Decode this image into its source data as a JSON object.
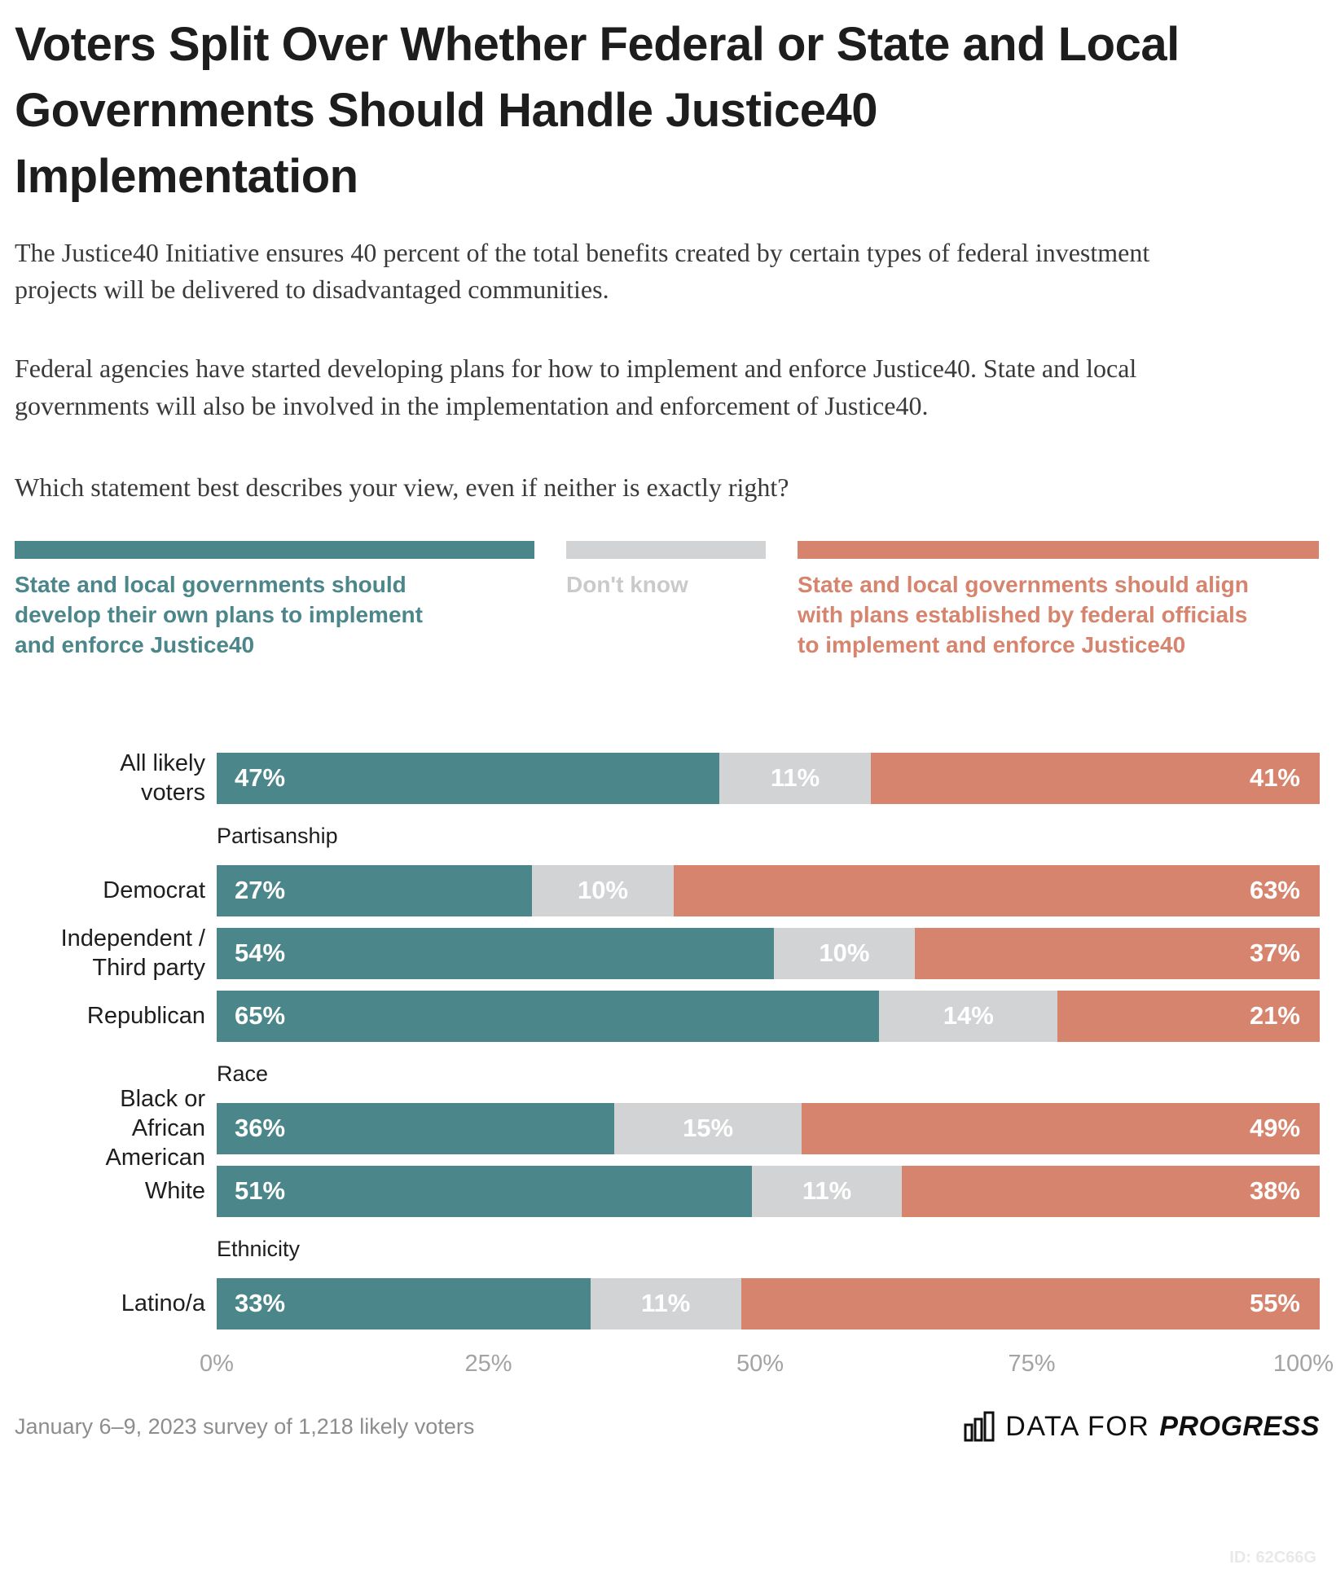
{
  "title": "Voters Split Over Whether Federal or State and Local Governments Should Handle Justice40 Implementation",
  "intro_paragraphs": [
    "The Justice40 Initiative ensures 40 percent of the total benefits created by certain types of federal investment projects will be delivered to disadvantaged communities.",
    "Federal agencies have started developing plans for how to implement and enforce Justice40. State and local governments will also be involved in the implementation and enforcement of Justice40."
  ],
  "question": "Which statement best describes your view, even if neither is exactly right?",
  "chart_data": {
    "type": "bar",
    "orientation": "horizontal",
    "stacked": true,
    "normalized_to_full_width": true,
    "unit": "%",
    "xlim": [
      0,
      100
    ],
    "x_ticks": [
      "0%",
      "25%",
      "50%",
      "75%",
      "100%"
    ],
    "legend_position": "top",
    "series": [
      {
        "name": "State and local governments should develop their own plans to implement and enforce Justice40",
        "color": "#4b868a"
      },
      {
        "name": "Don't know",
        "color": "#d2d3d4",
        "label_color": "#c9cacc"
      },
      {
        "name": "State and local governments should align with plans established by federal officials to implement and enforce Justice40",
        "color": "#d6846d"
      }
    ],
    "groups": [
      {
        "header": "",
        "rows": [
          {
            "label": "All likely\nvoters",
            "values": [
              47,
              11,
              41
            ]
          }
        ]
      },
      {
        "header": "Partisanship",
        "rows": [
          {
            "label": "Democrat",
            "values": [
              27,
              10,
              63
            ]
          },
          {
            "label": "Independent /\nThird party",
            "values": [
              54,
              10,
              37
            ]
          },
          {
            "label": "Republican",
            "values": [
              65,
              14,
              21
            ]
          }
        ]
      },
      {
        "header": "Race",
        "rows": [
          {
            "label": "Black or\nAfrican\nAmerican",
            "values": [
              36,
              15,
              49
            ]
          },
          {
            "label": "White",
            "values": [
              51,
              11,
              38
            ]
          }
        ]
      },
      {
        "header": "Ethnicity",
        "rows": [
          {
            "label": "Latino/a",
            "values": [
              33,
              11,
              55
            ]
          }
        ]
      }
    ]
  },
  "footer": {
    "source": "January 6–9, 2023 survey of 1,218 likely voters",
    "logo_prefix": "DATA FOR",
    "logo_suffix": "PROGRESS",
    "id": "ID: 62C66G"
  }
}
